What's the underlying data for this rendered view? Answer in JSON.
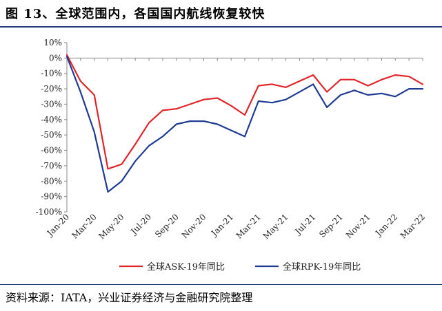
{
  "page": {
    "title": "图 13、全球范围内，各国国内航线恢复较快",
    "source": "资料来源：IATA，兴业证券经济与金融研究院整理"
  },
  "colors": {
    "ask": "#e0262a",
    "rpk": "#1f3a93",
    "rule": "#1f3d7a"
  },
  "chart_data": {
    "type": "line",
    "title": "",
    "xlabel": "",
    "ylabel": "",
    "ylim": [
      -100,
      10
    ],
    "yticks": [
      10,
      0,
      -10,
      -20,
      -30,
      -40,
      -50,
      -60,
      -70,
      -80,
      -90,
      -100
    ],
    "ytick_labels": [
      "10%",
      "0%",
      "-10%",
      "-20%",
      "-30%",
      "-40%",
      "-50%",
      "-60%",
      "-70%",
      "-80%",
      "-90%",
      "-100%"
    ],
    "x": [
      "Jan-20",
      "Feb-20",
      "Mar-20",
      "Apr-20",
      "May-20",
      "Jun-20",
      "Jul-20",
      "Aug-20",
      "Sep-20",
      "Oct-20",
      "Nov-20",
      "Dec-20",
      "Jan-21",
      "Feb-21",
      "Mar-21",
      "Apr-21",
      "May-21",
      "Jun-21",
      "Jul-21",
      "Aug-21",
      "Sep-21",
      "Oct-21",
      "Nov-21",
      "Dec-21",
      "Jan-22",
      "Feb-22",
      "Mar-22"
    ],
    "xtick_labels": [
      "Jan-20",
      "Mar-20",
      "May-20",
      "Jul-20",
      "Sep-20",
      "Nov-20",
      "Jan-21",
      "Mar-21",
      "May-21",
      "Jul-21",
      "Sep-21",
      "Nov-21",
      "Jan-22",
      "Mar-22"
    ],
    "grid": false,
    "legend_position": "bottom",
    "series": [
      {
        "name": "全球ASK-19年同比",
        "color": "#e0262a",
        "values": [
          2,
          -15,
          -24,
          -72,
          -69,
          -56,
          -42,
          -34,
          -33,
          -30,
          -27,
          -26,
          -31,
          -37,
          -18,
          -17,
          -19,
          -15,
          -11,
          -22,
          -14,
          -14,
          -18,
          -14,
          -11,
          -12,
          -17
        ]
      },
      {
        "name": "全球RPK-19年同比",
        "color": "#1f3a93",
        "values": [
          1,
          -22,
          -48,
          -87,
          -80,
          -67,
          -57,
          -51,
          -43,
          -41,
          -41,
          -43,
          -47,
          -51,
          -28,
          -29,
          -27,
          -22,
          -17,
          -32,
          -24,
          -21,
          -24,
          -23,
          -25,
          -20,
          -20
        ]
      }
    ]
  }
}
